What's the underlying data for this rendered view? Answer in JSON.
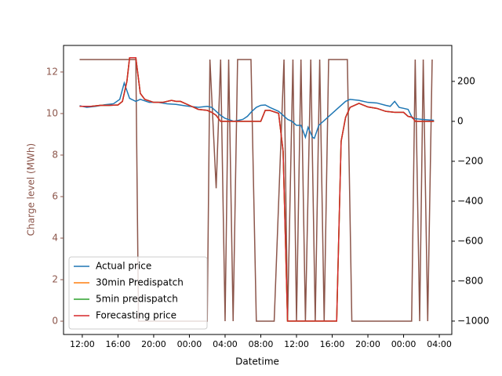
{
  "chart_data": {
    "type": "line",
    "xlabel": "Datetime",
    "ylabel": "Charge level (MWh)",
    "xlim": [
      9.9,
      53.4
    ],
    "xticks": [
      {
        "value": 12,
        "label": "12:00"
      },
      {
        "value": 16,
        "label": "16:00"
      },
      {
        "value": 20,
        "label": "20:00"
      },
      {
        "value": 24,
        "label": "00:00"
      },
      {
        "value": 28,
        "label": "04:00"
      },
      {
        "value": 32,
        "label": "08:00"
      },
      {
        "value": 36,
        "label": "12:00"
      },
      {
        "value": 40,
        "label": "16:00"
      },
      {
        "value": 44,
        "label": "20:00"
      },
      {
        "value": 48,
        "label": "00:00"
      },
      {
        "value": 52,
        "label": "04:00"
      }
    ],
    "ylim": [
      -0.64,
      13.28
    ],
    "yticks": [
      0,
      2,
      4,
      6,
      8,
      10,
      12
    ],
    "ycolor": "#8c564b",
    "y2lim": [
      -1067,
      380
    ],
    "y2ticks": [
      {
        "value": -1000,
        "label": "−1000"
      },
      {
        "value": -800,
        "label": "−800"
      },
      {
        "value": -600,
        "label": "−600"
      },
      {
        "value": -400,
        "label": "−400"
      },
      {
        "value": -200,
        "label": "−200"
      },
      0,
      200
    ],
    "legend": "lower left",
    "charge": {
      "color": "#8c564b",
      "x": [
        11.7,
        17.3,
        18,
        18.3,
        26,
        26.3,
        27,
        27.5,
        28,
        28.4,
        28.9,
        29.4,
        30.9,
        31.5,
        33.5,
        34.6,
        35,
        35.6,
        36,
        36.5,
        37,
        37.6,
        38.1,
        38.6,
        39.1,
        39.6,
        41.7,
        42.2,
        48.9,
        49.3,
        49.8,
        50.2,
        50.7,
        51.2
      ],
      "values": [
        12.6,
        12.6,
        12.6,
        0,
        0,
        12.6,
        6.4,
        12.6,
        0,
        12.6,
        0,
        12.6,
        12.6,
        0,
        0,
        12.6,
        0,
        12.6,
        0,
        12.6,
        0,
        12.6,
        0,
        12.6,
        0,
        12.6,
        12.6,
        0,
        0,
        12.6,
        0,
        12.6,
        0,
        12.6
      ]
    },
    "series": [
      {
        "name": "Actual price",
        "color": "#1f77b4",
        "axis": "y2",
        "x": [
          11.7,
          12.5,
          13.5,
          14.5,
          15.5,
          16.2,
          16.7,
          17.3,
          18,
          18.5,
          19.5,
          20.5,
          21.5,
          22.5,
          23.5,
          24,
          25,
          26,
          26.5,
          27,
          27.5,
          28,
          29,
          30,
          30.5,
          31,
          31.5,
          32,
          32.5,
          33,
          34,
          35,
          35.5,
          36,
          36.5,
          37,
          37.3,
          37.8,
          38,
          38.5,
          39.5,
          40.5,
          41.5,
          42,
          43,
          44,
          45,
          46,
          46.5,
          47,
          47.5,
          48,
          48.5,
          49,
          50,
          51.4
        ],
        "values": [
          78,
          70,
          75,
          83,
          88,
          110,
          192,
          115,
          100,
          110,
          95,
          95,
          88,
          85,
          78,
          75,
          70,
          75,
          70,
          50,
          30,
          15,
          0,
          10,
          25,
          50,
          70,
          80,
          82,
          70,
          50,
          10,
          0,
          -20,
          -20,
          -80,
          -30,
          -80,
          -85,
          -20,
          20,
          60,
          100,
          110,
          105,
          95,
          92,
          80,
          75,
          100,
          70,
          65,
          60,
          15,
          10,
          5
        ]
      },
      {
        "name": "30min Predispatch",
        "color": "#ff7f0e",
        "axis": "y2",
        "x": [
          11.7,
          13,
          14,
          15,
          16,
          16.5,
          17,
          17.3,
          18,
          18.5,
          19,
          20,
          21,
          22,
          22.5,
          23,
          24,
          25,
          26,
          26.5,
          27,
          27.5,
          29,
          31,
          32,
          32.5,
          33,
          34,
          34.5,
          35,
          36,
          40.5,
          41,
          41.5,
          42,
          43,
          44,
          45,
          46,
          47,
          48,
          48.5,
          49,
          49.3,
          51.4
        ],
        "values": [
          75,
          75,
          80,
          80,
          82,
          100,
          200,
          318,
          318,
          140,
          110,
          95,
          95,
          105,
          100,
          100,
          80,
          60,
          55,
          45,
          30,
          0,
          0,
          0,
          0,
          55,
          55,
          40,
          -150,
          -1000,
          -1000,
          -1000,
          -100,
          20,
          70,
          90,
          72,
          65,
          50,
          45,
          45,
          25,
          20,
          0,
          0
        ]
      },
      {
        "name": "5min predispatch",
        "color": "#2ca02c",
        "axis": "y2",
        "x": [
          11.7,
          13,
          14,
          15,
          16,
          16.5,
          17,
          17.3,
          18,
          18.5,
          19,
          20,
          21,
          22,
          22.5,
          23,
          24,
          25,
          26,
          26.5,
          27,
          27.5,
          29,
          31,
          32,
          32.5,
          33,
          34,
          34.5,
          35,
          36,
          40.5,
          41,
          41.5,
          42,
          43,
          44,
          45,
          46,
          47,
          48,
          48.5,
          49,
          49.3,
          51.4
        ],
        "values": [
          75,
          75,
          80,
          80,
          82,
          100,
          200,
          318,
          318,
          140,
          110,
          95,
          95,
          105,
          100,
          100,
          80,
          60,
          55,
          45,
          30,
          0,
          0,
          0,
          0,
          55,
          55,
          40,
          -150,
          -1000,
          -1000,
          -1000,
          -100,
          20,
          70,
          90,
          72,
          65,
          50,
          45,
          45,
          25,
          20,
          0,
          0
        ]
      },
      {
        "name": "Forecasting price",
        "color": "#d62728",
        "axis": "y2",
        "x": [
          11.7,
          13,
          14,
          15,
          16,
          16.5,
          17,
          17.3,
          18,
          18.5,
          19,
          20,
          21,
          22,
          22.5,
          23,
          24,
          25,
          26,
          26.5,
          27,
          27.5,
          29,
          31,
          32,
          32.5,
          33,
          34,
          34.5,
          35,
          36,
          40.5,
          41,
          41.5,
          42,
          43,
          44,
          45,
          46,
          47,
          48,
          48.5,
          49,
          49.3,
          51.4
        ],
        "values": [
          75,
          75,
          80,
          80,
          82,
          100,
          200,
          318,
          318,
          140,
          110,
          95,
          95,
          105,
          100,
          100,
          80,
          60,
          55,
          45,
          30,
          0,
          0,
          0,
          0,
          55,
          55,
          40,
          -150,
          -1000,
          -1000,
          -1000,
          -100,
          20,
          70,
          90,
          72,
          65,
          50,
          45,
          45,
          25,
          20,
          0,
          0
        ]
      }
    ]
  }
}
